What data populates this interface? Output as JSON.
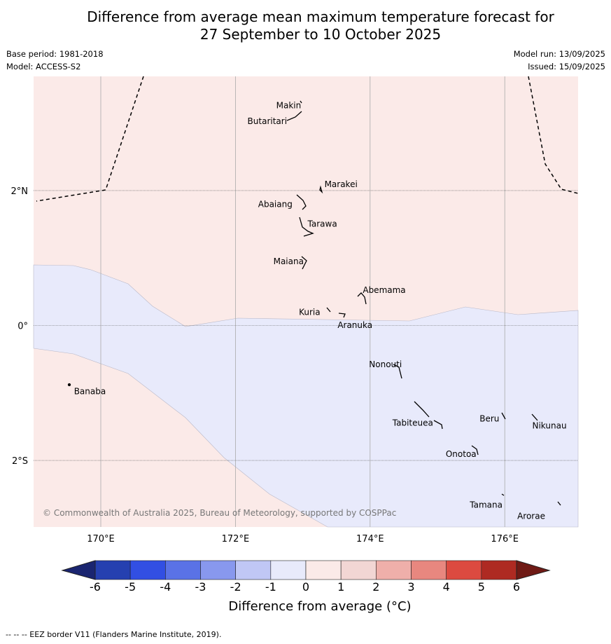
{
  "title": {
    "line1": "Difference from average mean maximum temperature forecast for",
    "line2": "27 September to 10 October 2025"
  },
  "meta": {
    "base_period": "Base period: 1981-2018",
    "model": "Model: ACCESS-S2",
    "model_run": "Model run: 13/09/2025",
    "issued": "Issued: 15/09/2025"
  },
  "map": {
    "lon_range": [
      169,
      177.1
    ],
    "lat_range": [
      -3,
      3.7
    ],
    "lon_ticks": [
      {
        "value": 170,
        "label": "170°E"
      },
      {
        "value": 172,
        "label": "172°E"
      },
      {
        "value": 174,
        "label": "174°E"
      },
      {
        "value": 176,
        "label": "176°E"
      }
    ],
    "lat_ticks": [
      {
        "value": 2,
        "label": "2°N"
      },
      {
        "value": 0,
        "label": "0°"
      },
      {
        "value": -2,
        "label": "2°S"
      }
    ],
    "colors": {
      "warm_0_1": "#fbeae8",
      "cool_m1_0": "#e8eafb"
    },
    "places": [
      {
        "name": "Makin",
        "lon": 172.99,
        "lat": 3.28
      },
      {
        "name": "Butaritari",
        "lon": 172.75,
        "lat": 3.07
      },
      {
        "name": "Marakei",
        "lon": 173.27,
        "lat": 2.0
      },
      {
        "name": "Abaiang",
        "lon": 172.96,
        "lat": 1.85
      },
      {
        "name": "Tarawa",
        "lon": 173.02,
        "lat": 1.4
      },
      {
        "name": "Maiana",
        "lon": 173.0,
        "lat": 0.95
      },
      {
        "name": "Abemama",
        "lon": 173.85,
        "lat": 0.4
      },
      {
        "name": "Kuria",
        "lon": 173.4,
        "lat": 0.22
      },
      {
        "name": "Aranuka",
        "lon": 173.6,
        "lat": 0.18
      },
      {
        "name": "Nonouti",
        "lon": 174.4,
        "lat": -0.65
      },
      {
        "name": "Banaba",
        "lon": 169.55,
        "lat": -0.87
      },
      {
        "name": "Tabiteuea",
        "lon": 174.8,
        "lat": -1.35
      },
      {
        "name": "Beru",
        "lon": 175.99,
        "lat": -1.33
      },
      {
        "name": "Nikunau",
        "lon": 176.45,
        "lat": -1.35
      },
      {
        "name": "Onotoa",
        "lon": 175.56,
        "lat": -1.8
      },
      {
        "name": "Tamana",
        "lon": 175.98,
        "lat": -2.5
      },
      {
        "name": "Arorae",
        "lon": 176.82,
        "lat": -2.64
      }
    ],
    "copyright": "© Commonwealth of Australia 2025, Bureau of Meteorology, supported by COSPPac"
  },
  "legend": {
    "label": "Difference from average (°C)",
    "bins": [
      {
        "from": -6,
        "to": -5,
        "color": "#2540b0"
      },
      {
        "from": -5,
        "to": -4,
        "color": "#324fe3"
      },
      {
        "from": -4,
        "to": -3,
        "color": "#5a72e6"
      },
      {
        "from": -3,
        "to": -2,
        "color": "#8898ee"
      },
      {
        "from": -2,
        "to": -1,
        "color": "#c0c7f5"
      },
      {
        "from": -1,
        "to": 0,
        "color": "#e8eafb"
      },
      {
        "from": 0,
        "to": 1,
        "color": "#fbeae8"
      },
      {
        "from": 1,
        "to": 2,
        "color": "#f2d6d4"
      },
      {
        "from": 2,
        "to": 3,
        "color": "#efafaa"
      },
      {
        "from": 3,
        "to": 4,
        "color": "#e8877f"
      },
      {
        "from": 4,
        "to": 5,
        "color": "#dc4a40"
      },
      {
        "from": 5,
        "to": 6,
        "color": "#ae2a22"
      }
    ],
    "low_extend_color": "#1a2570",
    "high_extend_color": "#6f1a15",
    "ticks": [
      "-6",
      "-5",
      "-4",
      "-3",
      "-2",
      "-1",
      "0",
      "1",
      "2",
      "3",
      "4",
      "5",
      "6"
    ]
  },
  "footer": "--  --  -- EEZ border V11 (Flanders Marine Institute, 2019)."
}
